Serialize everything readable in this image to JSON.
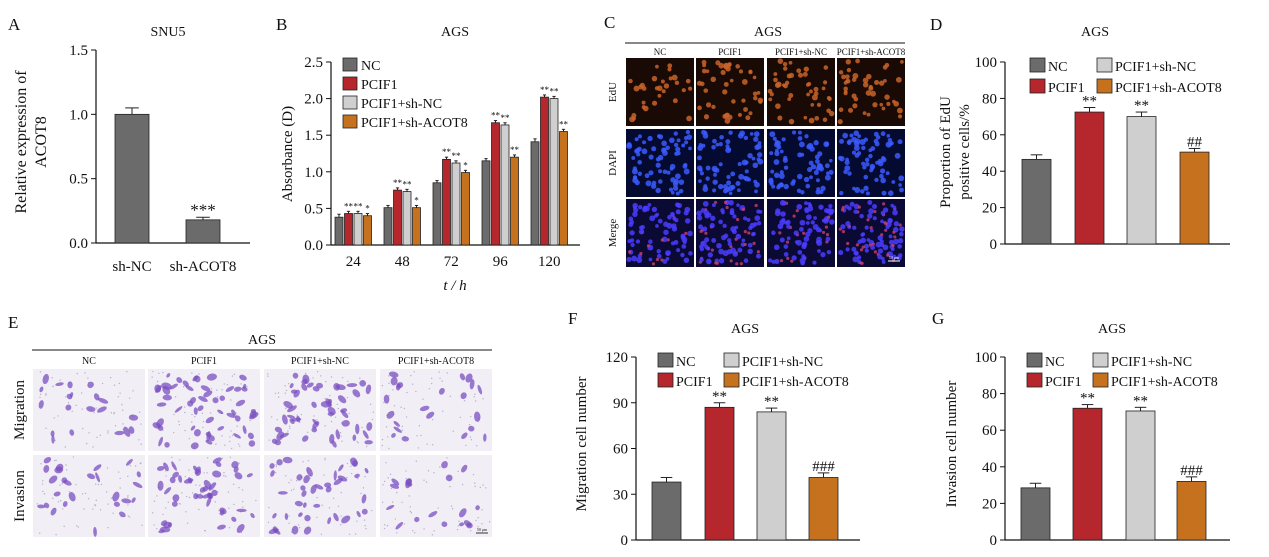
{
  "colors": {
    "NC": "#6b6b6b",
    "PCIF1": "#b5262d",
    "PCIF1+sh-NC": "#cfcfcf",
    "PCIF1+sh-ACOT8": "#c6711e",
    "axis": "#111111",
    "fluor_edu": "#c8642a",
    "fluor_dapi": "#2c3fd6",
    "stain": "#7a4fc0"
  },
  "panels": {
    "A": {
      "letter": "A",
      "title": "SNU5",
      "ylabel_line1": "Relative expression of",
      "ylabel_line2": "ACOT8"
    },
    "B": {
      "letter": "B",
      "title": "AGS",
      "ylabel": "Absorbance (D)",
      "xlabel": "t / h"
    },
    "C": {
      "letter": "C",
      "title": "AGS",
      "columns": [
        "NC",
        "PCIF1",
        "PCIF1+sh-NC",
        "PCIF1+sh-ACOT8"
      ],
      "rows": [
        "EdU",
        "DAPI",
        "Merge"
      ],
      "scale_text": "50 μm"
    },
    "D": {
      "letter": "D",
      "title": "AGS",
      "ylabel_line1": "Proportion of EdU",
      "ylabel_line2": "positive cells/%"
    },
    "E": {
      "letter": "E",
      "title": "AGS",
      "columns": [
        "NC",
        "PCIF1",
        "PCIF1+sh-NC",
        "PCIF1+sh-ACOT8"
      ],
      "rows": [
        "Migration",
        "Invasion"
      ],
      "scale_text": "50 μm"
    },
    "F": {
      "letter": "F",
      "title": "AGS",
      "ylabel": "Migration cell number"
    },
    "G": {
      "letter": "G",
      "title": "AGS",
      "ylabel": "Invasion cell number"
    }
  },
  "chart_data": [
    {
      "id": "A",
      "type": "bar",
      "categories": [
        "sh-NC",
        "sh-ACOT8"
      ],
      "values": [
        1.0,
        0.18
      ],
      "errors": [
        0.05,
        0.02
      ],
      "annotations": [
        "",
        "***"
      ],
      "ylim": [
        0,
        1.5
      ],
      "yticks": [
        0.0,
        0.5,
        1.0,
        1.5
      ],
      "title": "SNU5",
      "ylabel": "Relative expression of ACOT8",
      "xlabel": ""
    },
    {
      "id": "B",
      "type": "bar",
      "title": "AGS",
      "ylabel": "Absorbance (D)",
      "xlabel": "t / h",
      "categories": [
        "24",
        "48",
        "72",
        "96",
        "120"
      ],
      "ylim": [
        0,
        2.5
      ],
      "yticks": [
        0,
        0.5,
        1.0,
        1.5,
        2.0,
        2.5
      ],
      "legend_position": "top-left",
      "series": [
        {
          "name": "NC",
          "values": [
            0.38,
            0.51,
            0.85,
            1.15,
            1.41
          ],
          "errors": [
            0.04,
            0.03,
            0.03,
            0.03,
            0.04
          ],
          "annotations": [
            "",
            "",
            "",
            "",
            ""
          ]
        },
        {
          "name": "PCIF1",
          "values": [
            0.43,
            0.75,
            1.17,
            1.67,
            2.02
          ],
          "errors": [
            0.03,
            0.03,
            0.03,
            0.03,
            0.03
          ],
          "annotations": [
            "**",
            "**",
            "**",
            "**",
            "**"
          ]
        },
        {
          "name": "PCIF1+sh-NC",
          "values": [
            0.43,
            0.73,
            1.12,
            1.64,
            2.0
          ],
          "errors": [
            0.03,
            0.03,
            0.03,
            0.03,
            0.03
          ],
          "annotations": [
            "**",
            "**",
            "**",
            "**",
            "**"
          ]
        },
        {
          "name": "PCIF1+sh-ACOT8",
          "values": [
            0.4,
            0.51,
            0.99,
            1.2,
            1.55
          ],
          "errors": [
            0.03,
            0.03,
            0.03,
            0.03,
            0.03
          ],
          "annotations": [
            "*",
            "*",
            "*",
            "**",
            "**"
          ]
        }
      ]
    },
    {
      "id": "D",
      "type": "bar",
      "title": "AGS",
      "ylabel": "Proportion of EdU positive cells/%",
      "categories": [
        "NC",
        "PCIF1",
        "PCIF1+sh-NC",
        "PCIF1+sh-ACOT8"
      ],
      "values": [
        46.5,
        72.5,
        70,
        50.5
      ],
      "errors": [
        2.5,
        2.5,
        2.5,
        2.0
      ],
      "annotations": [
        "",
        "**",
        "**",
        "##"
      ],
      "ylim": [
        0,
        100
      ],
      "yticks": [
        0,
        20,
        40,
        60,
        80,
        100
      ],
      "legend_position": "top"
    },
    {
      "id": "F",
      "type": "bar",
      "title": "AGS",
      "ylabel": "Migration cell number",
      "categories": [
        "NC",
        "PCIF1",
        "PCIF1+sh-NC",
        "PCIF1+sh-ACOT8"
      ],
      "values": [
        38,
        87,
        84,
        41
      ],
      "errors": [
        3,
        3,
        2.5,
        3
      ],
      "annotations": [
        "",
        "**",
        "**",
        "###"
      ],
      "ylim": [
        0,
        120
      ],
      "yticks": [
        0,
        30,
        60,
        90,
        120
      ],
      "legend_position": "top"
    },
    {
      "id": "G",
      "type": "bar",
      "title": "AGS",
      "ylabel": "Invasion cell number",
      "categories": [
        "NC",
        "PCIF1",
        "PCIF1+sh-NC",
        "PCIF1+sh-ACOT8"
      ],
      "values": [
        28.5,
        72,
        70.5,
        32
      ],
      "errors": [
        2.5,
        2,
        2,
        2.5
      ],
      "annotations": [
        "",
        "**",
        "**",
        "###"
      ],
      "ylim": [
        0,
        100
      ],
      "yticks": [
        0,
        20,
        40,
        60,
        80,
        100
      ],
      "legend_position": "top"
    }
  ]
}
